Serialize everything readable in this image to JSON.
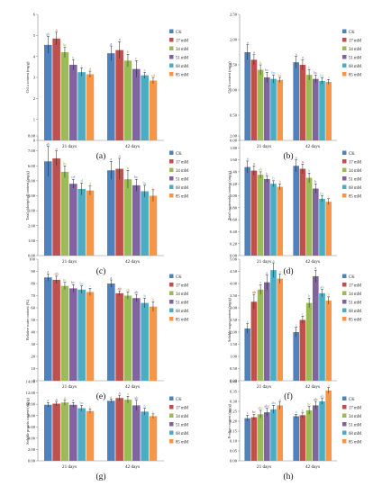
{
  "series_names": [
    "CK",
    "17 mM",
    "34 mM",
    "51 mM",
    "68 mM",
    "85 mM"
  ],
  "series_colors": [
    "#4F81BD",
    "#C0504D",
    "#9BBB59",
    "#8064A2",
    "#4BACC6",
    "#F79646"
  ],
  "categories": [
    "21 days",
    "42 days"
  ],
  "chart_data": [
    {
      "type": "bar",
      "panel_label": "(a)",
      "ylabel": "Chl a content (mg/g)",
      "ylim": [
        0,
        6
      ],
      "yticks": [
        "0",
        "1",
        "2",
        "3",
        "4",
        "5",
        "6"
      ],
      "categories": [
        "21 days",
        "42 days"
      ],
      "series": [
        {
          "name": "CK",
          "values": [
            4.55,
            4.15
          ],
          "errors": [
            0.4,
            0.35
          ]
        },
        {
          "name": "17 mM",
          "values": [
            4.85,
            4.3
          ],
          "errors": [
            0.3,
            0.4
          ]
        },
        {
          "name": "34 mM",
          "values": [
            4.2,
            3.8
          ],
          "errors": [
            0.25,
            0.3
          ]
        },
        {
          "name": "51 mM",
          "values": [
            3.6,
            3.4
          ],
          "errors": [
            0.25,
            0.4
          ]
        },
        {
          "name": "68 mM",
          "values": [
            3.25,
            3.1
          ],
          "errors": [
            0.2,
            0.15
          ]
        },
        {
          "name": "85 mM",
          "values": [
            3.15,
            2.85
          ],
          "errors": [
            0.15,
            0.15
          ]
        }
      ],
      "letters": [
        [
          "ab",
          "a",
          "bc",
          "c",
          "c",
          "d"
        ],
        [
          "a",
          "a",
          "b",
          "c",
          "c",
          "cd"
        ]
      ]
    },
    {
      "type": "bar",
      "panel_label": "(b)",
      "ylabel": "Chl b content (mg/g)",
      "ylim": [
        0,
        2.5
      ],
      "yticks": [
        "0.00",
        "0.50",
        "1.00",
        "1.50",
        "2.00",
        "2.50"
      ],
      "categories": [
        "21 days",
        "42 days"
      ],
      "series": [
        {
          "name": "CK",
          "values": [
            1.75,
            1.55
          ],
          "errors": [
            0.15,
            0.12
          ]
        },
        {
          "name": "17 mM",
          "values": [
            1.6,
            1.5
          ],
          "errors": [
            0.1,
            0.1
          ]
        },
        {
          "name": "34 mM",
          "values": [
            1.4,
            1.3
          ],
          "errors": [
            0.1,
            0.1
          ]
        },
        {
          "name": "51 mM",
          "values": [
            1.25,
            1.22
          ],
          "errors": [
            0.1,
            0.08
          ]
        },
        {
          "name": "68 mM",
          "values": [
            1.22,
            1.18
          ],
          "errors": [
            0.08,
            0.06
          ]
        },
        {
          "name": "85 mM",
          "values": [
            1.2,
            1.16
          ],
          "errors": [
            0.05,
            0.05
          ]
        }
      ],
      "letters": [
        [
          "a",
          "a",
          "b",
          "bc",
          "bc",
          "bc"
        ],
        [
          "a",
          "a",
          "b",
          "bc",
          "bc",
          "c"
        ]
      ]
    },
    {
      "type": "bar",
      "panel_label": "(c)",
      "ylabel": "Total chlorophyll content (mg/g)",
      "ylim": [
        0,
        8
      ],
      "yticks": [
        "0.00",
        "1.00",
        "2.00",
        "3.00",
        "4.00",
        "5.00",
        "6.00",
        "7.00",
        "8.00"
      ],
      "categories": [
        "21 days",
        "42 days"
      ],
      "series": [
        {
          "name": "CK",
          "values": [
            6.3,
            5.7
          ],
          "errors": [
            1.0,
            0.6
          ]
        },
        {
          "name": "17 mM",
          "values": [
            6.5,
            5.8
          ],
          "errors": [
            0.5,
            0.7
          ]
        },
        {
          "name": "34 mM",
          "values": [
            5.6,
            5.1
          ],
          "errors": [
            0.4,
            0.6
          ]
        },
        {
          "name": "51 mM",
          "values": [
            4.8,
            4.7
          ],
          "errors": [
            0.3,
            0.4
          ]
        },
        {
          "name": "68 mM",
          "values": [
            4.45,
            4.3
          ],
          "errors": [
            0.4,
            0.4
          ]
        },
        {
          "name": "85 mM",
          "values": [
            4.35,
            4.0
          ],
          "errors": [
            0.3,
            0.4
          ]
        }
      ],
      "letters": [
        [
          "ab",
          "a",
          "bc",
          "cd",
          "d",
          "d"
        ],
        [
          "a",
          "a",
          "b",
          "bc",
          "bc",
          "c"
        ]
      ]
    },
    {
      "type": "bar",
      "panel_label": "(d)",
      "ylabel": "Total carotenoids content (mg/g)",
      "ylim": [
        0,
        2
      ],
      "yticks": [
        "0.00",
        "0.20",
        "0.40",
        "0.60",
        "0.80",
        "1.00",
        "1.20",
        "1.40",
        "1.60",
        "1.80",
        "2.00"
      ],
      "categories": [
        "21 days",
        "42 days"
      ],
      "series": [
        {
          "name": "CK",
          "values": [
            1.48,
            1.5
          ],
          "errors": [
            0.1,
            0.1
          ]
        },
        {
          "name": "17 mM",
          "values": [
            1.42,
            1.45
          ],
          "errors": [
            0.08,
            0.08
          ]
        },
        {
          "name": "34 mM",
          "values": [
            1.35,
            1.3
          ],
          "errors": [
            0.05,
            0.08
          ]
        },
        {
          "name": "51 mM",
          "values": [
            1.28,
            1.12
          ],
          "errors": [
            0.05,
            0.08
          ]
        },
        {
          "name": "68 mM",
          "values": [
            1.2,
            0.95
          ],
          "errors": [
            0.05,
            0.05
          ]
        },
        {
          "name": "85 mM",
          "values": [
            1.15,
            0.9
          ],
          "errors": [
            0.05,
            0.05
          ]
        }
      ],
      "letters": [
        [
          "a",
          "a",
          "ab",
          "b",
          "b",
          "b"
        ],
        [
          "a",
          "a",
          "b",
          "b",
          "bc",
          "c"
        ]
      ]
    },
    {
      "type": "bar",
      "panel_label": "(e)",
      "ylabel": "Relative water content (%)",
      "ylim": [
        0,
        100
      ],
      "yticks": [
        "0",
        "10",
        "20",
        "30",
        "40",
        "50",
        "60",
        "70",
        "80",
        "90",
        "100"
      ],
      "categories": [
        "21 days",
        "42 days"
      ],
      "series": [
        {
          "name": "CK",
          "values": [
            85,
            80
          ],
          "errors": [
            3,
            3
          ]
        },
        {
          "name": "17 mM",
          "values": [
            83,
            72
          ],
          "errors": [
            3,
            2
          ]
        },
        {
          "name": "34 mM",
          "values": [
            78,
            70
          ],
          "errors": [
            3,
            3
          ]
        },
        {
          "name": "51 mM",
          "values": [
            76,
            68
          ],
          "errors": [
            3,
            3
          ]
        },
        {
          "name": "68 mM",
          "values": [
            75,
            64
          ],
          "errors": [
            3,
            4
          ]
        },
        {
          "name": "85 mM",
          "values": [
            73,
            61
          ],
          "errors": [
            3,
            4
          ]
        }
      ],
      "letters": [
        [
          "a",
          "ab",
          "bc",
          "bc",
          "bc",
          "c"
        ],
        [
          "a",
          "ab",
          "ab",
          "ab",
          "b",
          "b"
        ]
      ]
    },
    {
      "type": "bar",
      "panel_label": "(f)",
      "ylabel": "Soluble sugar content (mg/g)",
      "ylim": [
        0,
        5
      ],
      "yticks": [
        "0.00",
        "0.50",
        "1.00",
        "1.50",
        "2.00",
        "2.50",
        "3.00",
        "3.50",
        "4.00",
        "4.50",
        "5.00"
      ],
      "categories": [
        "21 days",
        "42 days"
      ],
      "series": [
        {
          "name": "CK",
          "values": [
            2.15,
            2.0
          ],
          "errors": [
            0.2,
            0.2
          ]
        },
        {
          "name": "17 mM",
          "values": [
            3.25,
            2.5
          ],
          "errors": [
            0.3,
            0.15
          ]
        },
        {
          "name": "34 mM",
          "values": [
            3.75,
            3.2
          ],
          "errors": [
            0.2,
            0.2
          ]
        },
        {
          "name": "51 mM",
          "values": [
            4.05,
            4.3
          ],
          "errors": [
            0.3,
            0.25
          ]
        },
        {
          "name": "68 mM",
          "values": [
            4.55,
            3.6
          ],
          "errors": [
            0.3,
            0.15
          ]
        },
        {
          "name": "85 mM",
          "values": [
            4.2,
            3.3
          ],
          "errors": [
            0.2,
            0.15
          ]
        }
      ],
      "letters": [
        [
          "c",
          "ab",
          "a",
          "a",
          "a",
          "a"
        ],
        [
          "c",
          "c",
          "b",
          "a",
          "ab",
          "b"
        ]
      ]
    },
    {
      "type": "bar",
      "panel_label": "(g)",
      "ylabel": "Soluble protein content (mg/g)",
      "ylim": [
        0,
        14
      ],
      "yticks": [
        "0.00",
        "2.00",
        "4.00",
        "6.00",
        "8.00",
        "10.00",
        "12.00",
        "14.00"
      ],
      "categories": [
        "21 days",
        "42 days"
      ],
      "series": [
        {
          "name": "CK",
          "values": [
            9.9,
            10.6
          ],
          "errors": [
            0.4,
            0.3
          ]
        },
        {
          "name": "17 mM",
          "values": [
            10.1,
            11.1
          ],
          "errors": [
            0.4,
            0.5
          ]
        },
        {
          "name": "34 mM",
          "values": [
            10.3,
            10.8
          ],
          "errors": [
            0.5,
            0.6
          ]
        },
        {
          "name": "51 mM",
          "values": [
            9.9,
            9.8
          ],
          "errors": [
            0.4,
            0.9
          ]
        },
        {
          "name": "68 mM",
          "values": [
            9.3,
            8.7
          ],
          "errors": [
            0.5,
            0.6
          ]
        },
        {
          "name": "85 mM",
          "values": [
            8.8,
            7.9
          ],
          "errors": [
            0.4,
            0.4
          ]
        }
      ],
      "letters": [
        [
          "a",
          "a",
          "a",
          "a",
          "bc",
          "c"
        ],
        [
          "a",
          "a",
          "a",
          "ab",
          "b",
          "c"
        ]
      ]
    },
    {
      "type": "bar",
      "panel_label": "(h)",
      "ylabel": "Proline content (mg/g)",
      "ylim": [
        0,
        0.4
      ],
      "yticks": [
        "0.00",
        "0.05",
        "0.10",
        "0.15",
        "0.20",
        "0.25",
        "0.30",
        "0.35",
        "0.40"
      ],
      "categories": [
        "21 days",
        "42 days"
      ],
      "series": [
        {
          "name": "CK",
          "values": [
            0.215,
            0.225
          ],
          "errors": [
            0.015,
            0.01
          ]
        },
        {
          "name": "17 mM",
          "values": [
            0.22,
            0.23
          ],
          "errors": [
            0.015,
            0.015
          ]
        },
        {
          "name": "34 mM",
          "values": [
            0.235,
            0.255
          ],
          "errors": [
            0.02,
            0.02
          ]
        },
        {
          "name": "51 mM",
          "values": [
            0.245,
            0.28
          ],
          "errors": [
            0.02,
            0.02
          ]
        },
        {
          "name": "68 mM",
          "values": [
            0.26,
            0.3
          ],
          "errors": [
            0.02,
            0.015
          ]
        },
        {
          "name": "85 mM",
          "values": [
            0.28,
            0.355
          ],
          "errors": [
            0.02,
            0.015
          ]
        }
      ],
      "letters": [
        [
          "c",
          "bc",
          "abc",
          "abc",
          "ab",
          "a"
        ],
        [
          "c",
          "c",
          "bc",
          "ab",
          "ab",
          "a"
        ]
      ]
    }
  ]
}
